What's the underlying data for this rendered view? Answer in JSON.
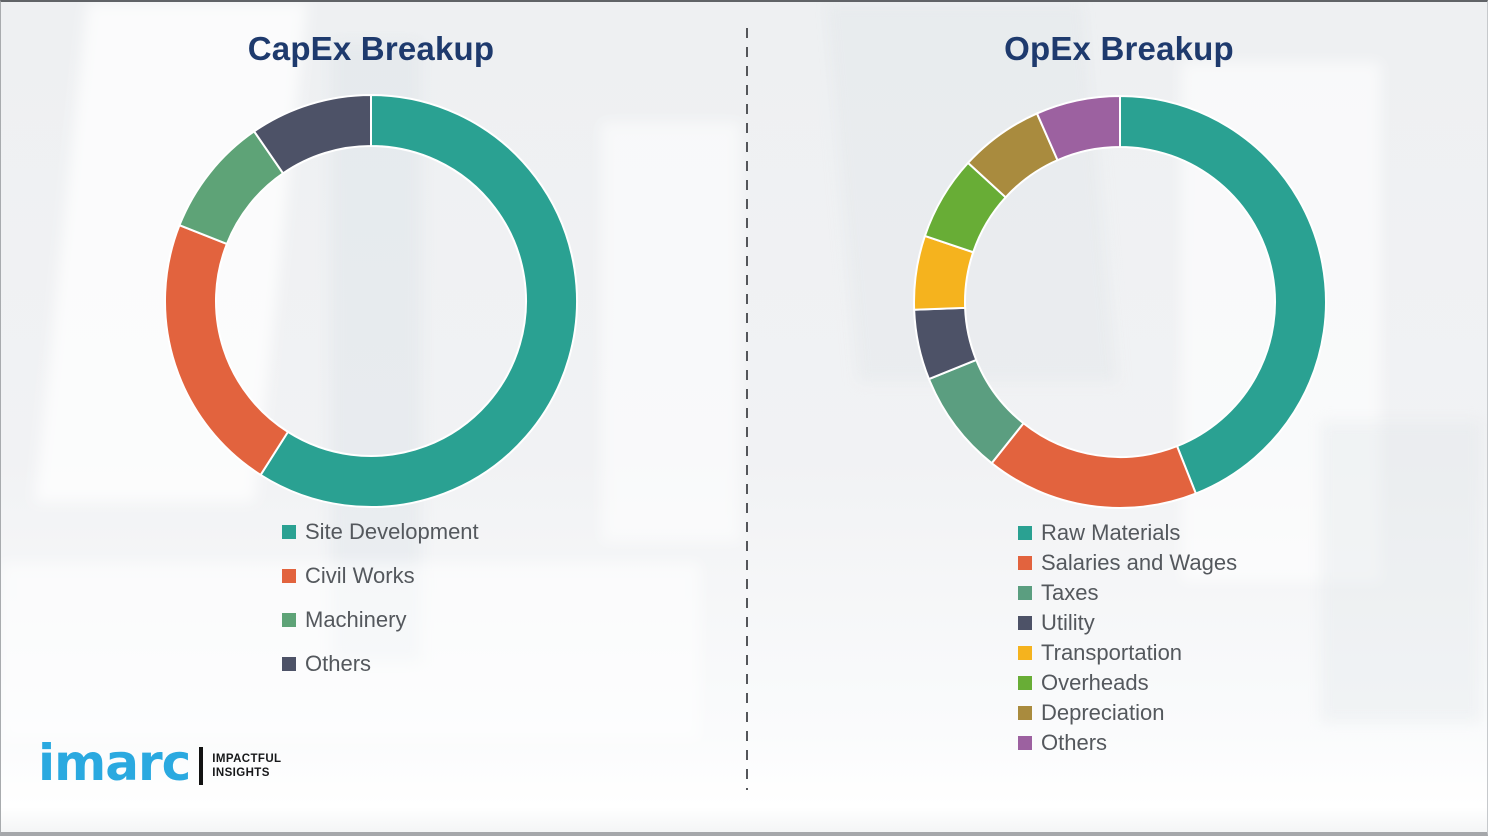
{
  "page": {
    "background_color": "#eff0f2",
    "divider_style": "vertical-dashed-gray"
  },
  "chart_data": [
    {
      "type": "pie",
      "subtype": "donut",
      "title": "CapEx Breakup",
      "categories": [
        "Site Development",
        "Civil Works",
        "Machinery",
        "Others"
      ],
      "values": [
        59,
        22,
        9.4,
        9.6
      ],
      "colors": [
        "#2aa192",
        "#e2633e",
        "#5ea377",
        "#4d5267"
      ],
      "start_angle_deg": 0,
      "direction": "clockwise",
      "legend_position": "below-left",
      "title_color": "#1e3a6d",
      "segment_gap_color": "#ffffff"
    },
    {
      "type": "pie",
      "subtype": "donut",
      "title": "OpEx Breakup",
      "categories": [
        "Raw Materials",
        "Salaries and Wages",
        "Taxes",
        "Utility",
        "Transportation",
        "Overheads",
        "Depreciation",
        "Others"
      ],
      "values": [
        44,
        16.7,
        8.2,
        5.5,
        5.8,
        6.6,
        6.6,
        6.6
      ],
      "colors": [
        "#2aa192",
        "#e2633e",
        "#5b9e80",
        "#4d5267",
        "#f5b31e",
        "#68ad36",
        "#a98b3e",
        "#9c61a0"
      ],
      "start_angle_deg": 0,
      "direction": "clockwise",
      "legend_position": "below-left",
      "title_color": "#1e3a6d",
      "segment_gap_color": "#ffffff"
    }
  ],
  "logo": {
    "brand": "imarc",
    "brand_color": "#2aa9e0",
    "tagline_line1": "IMPACTFUL",
    "tagline_line2": "INSIGHTS"
  }
}
